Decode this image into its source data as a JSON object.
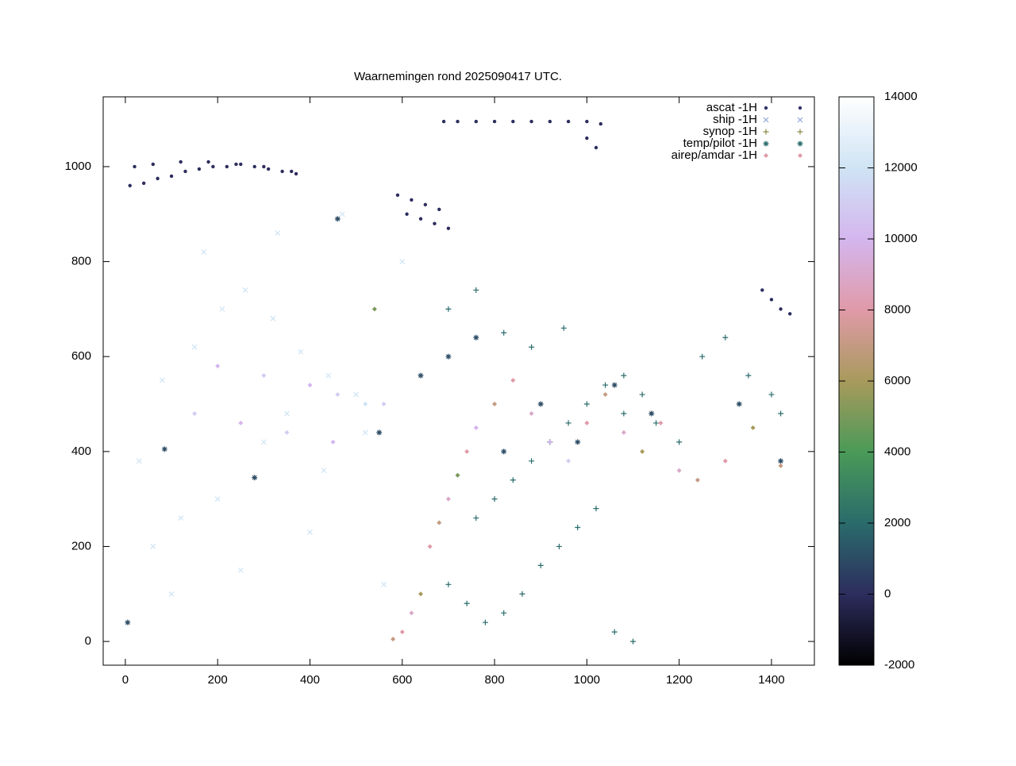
{
  "chart_data": {
    "type": "scatter",
    "title": "Waarnemingen rond 2025090417 UTC.",
    "xlim": [
      -48,
      1493
    ],
    "ylim": [
      -50,
      1147
    ],
    "xticks": [
      0,
      200,
      400,
      600,
      800,
      1000,
      1200,
      1400
    ],
    "yticks": [
      0,
      200,
      400,
      600,
      800,
      1000
    ],
    "cblim": [
      -2000,
      14000
    ],
    "cbticks": [
      -2000,
      0,
      2000,
      4000,
      6000,
      8000,
      10000,
      12000,
      14000
    ],
    "palette": [
      "#000000",
      "#2d2d5e",
      "#2a6b6b",
      "#4a9a58",
      "#a89a5c",
      "#e09aa8",
      "#d4b6ee",
      "#cfe4f4",
      "#ffffff"
    ],
    "series": [
      {
        "name": "ascat -1H",
        "marker": "dot",
        "color": "#33336b",
        "x": [
          10,
          40,
          70,
          100,
          130,
          160,
          190,
          220,
          250,
          280,
          310,
          340,
          370,
          20,
          60,
          120,
          180,
          240,
          300,
          360,
          590,
          620,
          650,
          680,
          610,
          640,
          670,
          700,
          690,
          720,
          760,
          800,
          840,
          880,
          920,
          960,
          1000,
          1030,
          1000,
          1020,
          1380,
          1400,
          1420,
          1440
        ],
        "y": [
          960,
          965,
          975,
          980,
          990,
          995,
          1000,
          1000,
          1005,
          1000,
          995,
          990,
          985,
          1000,
          1005,
          1010,
          1010,
          1005,
          1000,
          990,
          940,
          930,
          920,
          910,
          900,
          890,
          880,
          870,
          1095,
          1095,
          1095,
          1095,
          1095,
          1095,
          1095,
          1095,
          1095,
          1090,
          1060,
          1040,
          740,
          720,
          700,
          690
        ],
        "c": [
          0,
          0,
          0,
          0,
          0,
          0,
          0,
          0,
          0,
          0,
          0,
          0,
          0,
          0,
          0,
          0,
          0,
          0,
          0,
          0,
          0,
          0,
          0,
          0,
          0,
          0,
          0,
          0,
          0,
          0,
          0,
          0,
          0,
          0,
          0,
          0,
          0,
          0,
          0,
          0,
          0,
          0,
          0,
          0
        ]
      },
      {
        "name": "ship -1H",
        "marker": "x",
        "color": "#8fa6d8",
        "x": [
          30,
          80,
          150,
          210,
          260,
          320,
          380,
          440,
          500,
          60,
          120,
          200,
          300,
          350,
          430,
          520,
          100,
          250,
          400,
          560,
          170,
          330,
          470,
          600
        ],
        "y": [
          380,
          550,
          620,
          700,
          740,
          680,
          610,
          560,
          520,
          200,
          260,
          300,
          420,
          480,
          360,
          440,
          100,
          150,
          230,
          120,
          820,
          860,
          900,
          800
        ],
        "c": [
          12000,
          12000,
          12000,
          12000,
          12000,
          12000,
          12000,
          12000,
          12000,
          12000,
          12000,
          12000,
          12000,
          12000,
          12000,
          12000,
          12000,
          12000,
          12000,
          12000,
          12000,
          12000,
          12000,
          12000
        ]
      },
      {
        "name": "synop -1H",
        "marker": "+",
        "color": "#8a8a4a",
        "x": [
          760,
          800,
          840,
          880,
          920,
          960,
          1000,
          1040,
          1080,
          1120,
          700,
          740,
          780,
          820,
          860,
          900,
          940,
          980,
          1020,
          1060,
          1100,
          1150,
          1200,
          1250,
          1300,
          1350,
          1400,
          1420,
          700,
          760,
          820,
          880,
          950,
          1080
        ],
        "y": [
          260,
          300,
          340,
          380,
          420,
          460,
          500,
          540,
          480,
          520,
          120,
          80,
          40,
          60,
          100,
          160,
          200,
          240,
          280,
          20,
          0,
          460,
          420,
          600,
          640,
          560,
          520,
          480,
          700,
          740,
          650,
          620,
          660,
          560
        ],
        "c": [
          2000,
          2000,
          2000,
          2000,
          2000,
          2000,
          2000,
          2000,
          2000,
          2000,
          2000,
          2000,
          2000,
          2000,
          2000,
          2000,
          2000,
          2000,
          2000,
          2000,
          2000,
          2000,
          2000,
          2000,
          2000,
          2000,
          2000,
          2000,
          2000,
          2000,
          2000,
          2000,
          2000,
          2000
        ]
      },
      {
        "name": "temp/pilot -1H",
        "marker": "*",
        "color": "#2a6b6b",
        "x": [
          5,
          85,
          280,
          460,
          550,
          640,
          700,
          760,
          820,
          900,
          980,
          1060,
          1140,
          1330,
          1420
        ],
        "y": [
          40,
          405,
          345,
          890,
          440,
          560,
          600,
          640,
          400,
          500,
          420,
          540,
          480,
          500,
          380
        ],
        "c": [
          1000,
          1000,
          1000,
          1000,
          1000,
          1000,
          1000,
          1000,
          1000,
          1000,
          1000,
          1000,
          1000,
          1000,
          1000
        ]
      },
      {
        "name": "airep/amdar -1H",
        "marker": "diamond",
        "color": "#e09aa8",
        "x": [
          580,
          600,
          620,
          640,
          660,
          680,
          700,
          720,
          740,
          760,
          800,
          840,
          880,
          920,
          960,
          1000,
          1040,
          1080,
          1120,
          1160,
          1200,
          1240,
          1300,
          1360,
          1420,
          540,
          560,
          200,
          300,
          400,
          460,
          520,
          150,
          250,
          350,
          450
        ],
        "y": [
          5,
          20,
          60,
          100,
          200,
          250,
          300,
          350,
          400,
          450,
          500,
          550,
          480,
          420,
          380,
          460,
          520,
          440,
          400,
          460,
          360,
          340,
          380,
          450,
          370,
          700,
          500,
          580,
          560,
          540,
          520,
          500,
          480,
          460,
          440,
          420
        ],
        "c": [
          7000,
          8000,
          9000,
          6000,
          8000,
          7000,
          9000,
          5000,
          8000,
          10000,
          7000,
          8000,
          9000,
          10000,
          11000,
          8000,
          7000,
          9000,
          6000,
          8000,
          9000,
          7000,
          8000,
          6000,
          7000,
          5000,
          11000,
          10000,
          11000,
          10000,
          11000,
          12000,
          11000,
          10000,
          11000,
          10000
        ]
      }
    ]
  }
}
